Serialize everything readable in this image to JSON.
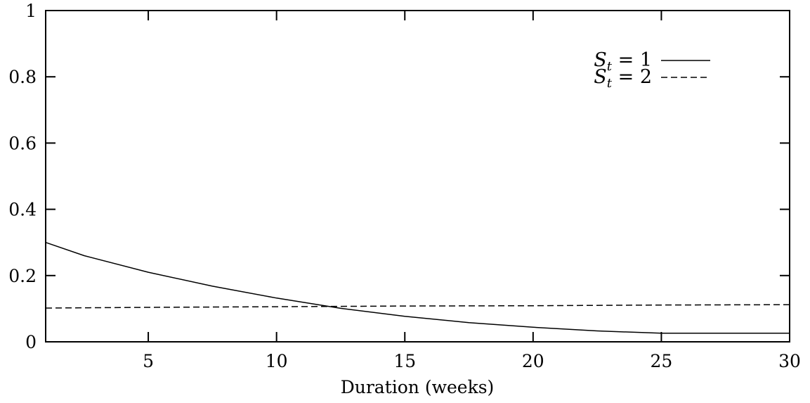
{
  "chart_data": {
    "type": "line",
    "xlabel": "Duration (weeks)",
    "ylabel": "",
    "xlim": [
      1,
      30
    ],
    "ylim": [
      0,
      1
    ],
    "xticks": [
      5,
      10,
      15,
      20,
      25,
      30
    ],
    "xtick_labels": [
      "5",
      "10",
      "15",
      "20",
      "25",
      "30"
    ],
    "yticks": [
      0,
      0.2,
      0.4,
      0.6,
      0.8,
      1
    ],
    "ytick_labels": [
      "0",
      "0.2",
      "0.4",
      "0.6",
      "0.8",
      "1"
    ],
    "grid": false,
    "legend_position": "top-right",
    "series": [
      {
        "name": "S_t = 1",
        "legend_var": "S",
        "legend_sub": "t",
        "legend_rest": " = 1",
        "style": "solid",
        "color": "#000000",
        "x": [
          1,
          2.5,
          5,
          7.5,
          10,
          12.5,
          15,
          17.5,
          20,
          22.5,
          25,
          27.5,
          30
        ],
        "y": [
          0.3,
          0.26,
          0.21,
          0.168,
          0.132,
          0.101,
          0.077,
          0.058,
          0.044,
          0.033,
          0.026,
          0.026,
          0.026
        ]
      },
      {
        "name": "S_t = 2",
        "legend_var": "S",
        "legend_sub": "t",
        "legend_rest": " = 2",
        "style": "dashed",
        "color": "#000000",
        "x": [
          1,
          5,
          10,
          15,
          20,
          25,
          30
        ],
        "y": [
          0.102,
          0.104,
          0.106,
          0.108,
          0.109,
          0.111,
          0.112
        ]
      }
    ]
  }
}
